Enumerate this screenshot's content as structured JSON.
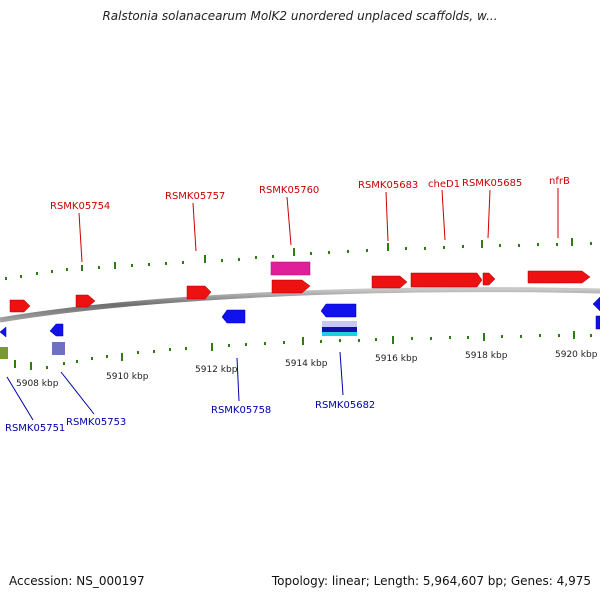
{
  "title": "Ralstonia solanacearum MolK2 unordered unplaced scaffolds, w...",
  "footer": {
    "accession": "Accession: NS_000197",
    "stats": "Topology: linear; Length: 5,964,607 bp; Genes: 4,975"
  },
  "colors": {
    "forward_gene": "#ee1111",
    "reverse_gene": "#1111ee",
    "forward_label": "#cc0000",
    "reverse_label": "#0000aa",
    "tick": "#2e7d10",
    "backbone": "#8a8a8a",
    "rna_magenta": "#e0209a",
    "olive": "#7a9a30",
    "slate": "#7070c0",
    "cyan": "#20d0e0"
  },
  "scale_labels": [
    "5908 kbp",
    "5910 kbp",
    "5912 kbp",
    "5914 kbp",
    "5916 kbp",
    "5918 kbp",
    "5920 kbp"
  ],
  "forward_gene_labels": [
    "RSMK05754",
    "RSMK05757",
    "RSMK05760",
    "RSMK05683",
    "cheD1",
    "RSMK05685",
    "nfrB"
  ],
  "reverse_gene_labels": [
    "RSMK05751",
    "RSMK05753",
    "RSMK05758",
    "RSMK05682"
  ]
}
